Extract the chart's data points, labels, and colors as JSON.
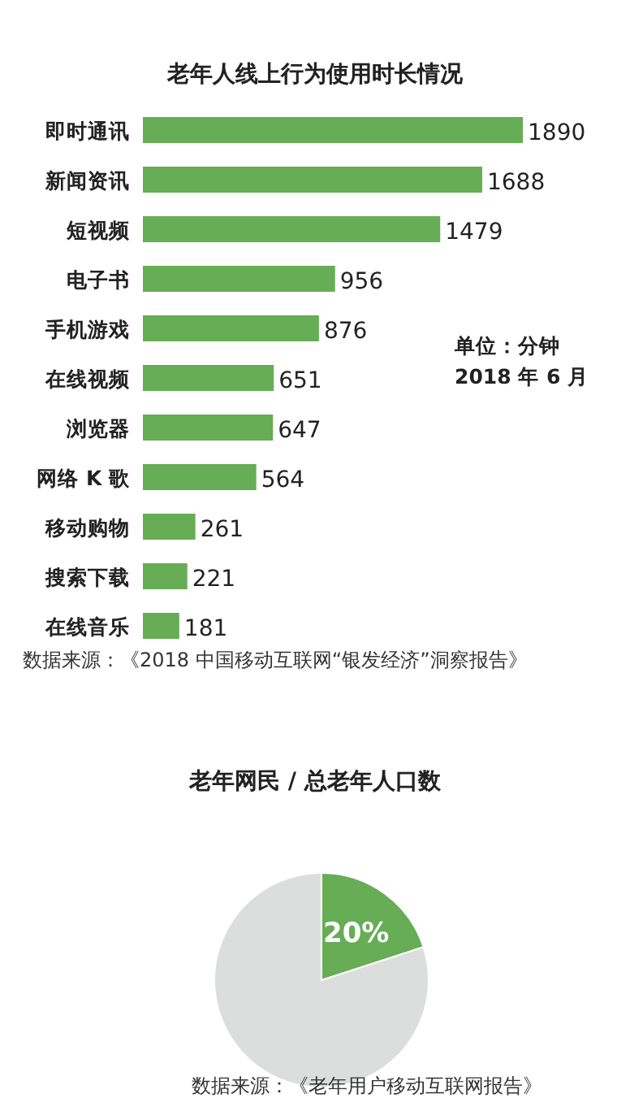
{
  "chart_data": [
    {
      "type": "bar",
      "orientation": "horizontal",
      "title": "老年人线上行为使用时长情况",
      "categories": [
        "即时通讯",
        "新闻资讯",
        "短视频",
        "电子书",
        "手机游戏",
        "在线视频",
        "浏览器",
        "网络 K 歌",
        "移动购物",
        "搜索下载",
        "在线音乐"
      ],
      "values": [
        1890,
        1688,
        1479,
        956,
        876,
        651,
        647,
        564,
        261,
        221,
        181
      ],
      "color": "#66ad55",
      "data_labels": true,
      "annotations": [
        "单位：分钟",
        "2018 年 6 月",
        "数据来源：《2018 中国移动互联网“银发经济”洞察报告》"
      ]
    },
    {
      "type": "pie",
      "title": "老年网民 / 总老年人口数",
      "categories": [
        null,
        null
      ],
      "values": [
        20,
        80
      ],
      "colors": [
        "#66ad55",
        "#dcdddd"
      ],
      "value_labels": [
        "20%",
        null
      ],
      "annotations": [
        "数据来源：《老年用户移动互联网报告》"
      ]
    }
  ]
}
